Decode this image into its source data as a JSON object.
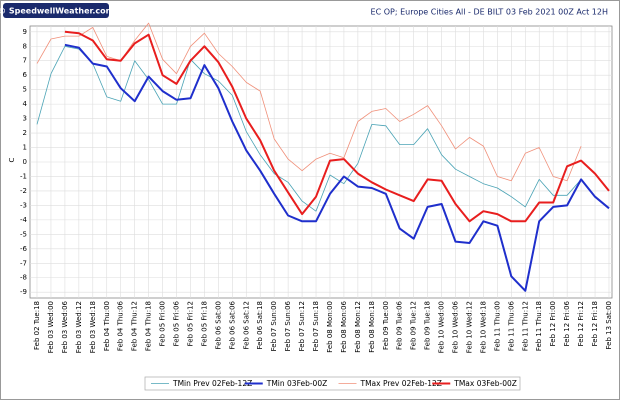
{
  "chart_data": {
    "type": "line",
    "source": "© SpeedwellWeather.com",
    "title": "EC OP; Europe Cities All - DE BILT 03 Feb 2021 00Z Act 12H",
    "y_label": "C",
    "categories": [
      "Feb 02 Tue:18",
      "Feb 03 Wed:00",
      "Feb 03 Wed:06",
      "Feb 03 Wed:12",
      "Feb 03 Wed:18",
      "Feb 04 Thu:00",
      "Feb 04 Thu:06",
      "Feb 04 Thu:12",
      "Feb 04 Thu:18",
      "Feb 05 Fri:00",
      "Feb 05 Fri:06",
      "Feb 05 Fri:12",
      "Feb 05 Fri:18",
      "Feb 06 Sat:00",
      "Feb 06 Sat:06",
      "Feb 06 Sat:12",
      "Feb 06 Sat:18",
      "Feb 07 Sun:00",
      "Feb 07 Sun:06",
      "Feb 07 Sun:12",
      "Feb 07 Sun:18",
      "Feb 08 Mon:00",
      "Feb 08 Mon:06",
      "Feb 08 Mon:12",
      "Feb 08 Mon:18",
      "Feb 09 Tue:00",
      "Feb 09 Tue:06",
      "Feb 09 Tue:12",
      "Feb 09 Tue:18",
      "Feb 10 Wed:00",
      "Feb 10 Wed:06",
      "Feb 10 Wed:12",
      "Feb 10 Wed:18",
      "Feb 11 Thu:00",
      "Feb 11 Thu:06",
      "Feb 11 Thu:12",
      "Feb 11 Thu:18",
      "Feb 12 Fri:00",
      "Feb 12 Fri:06",
      "Feb 12 Fri:12",
      "Feb 12 Fri:18",
      "Feb 13 Sat:00"
    ],
    "series": [
      {
        "name": "TMin Prev 02Feb-12Z",
        "color": "#4aa3b5",
        "width": 0.8,
        "values": [
          2.6,
          6.1,
          8.0,
          7.8,
          6.8,
          4.5,
          4.2,
          7.0,
          5.7,
          4.0,
          4.0,
          7.1,
          6.1,
          5.6,
          4.6,
          2.1,
          0.5,
          -0.8,
          -1.4,
          -2.7,
          -3.4,
          -0.9,
          -1.5,
          -0.1,
          2.6,
          2.5,
          1.2,
          1.2,
          2.3,
          0.5,
          -0.5,
          -1.0,
          -1.5,
          -1.8,
          -2.4,
          -3.1,
          -1.2,
          -2.3,
          -2.3,
          -1.2,
          null,
          null
        ]
      },
      {
        "name": "TMin 03Feb-00Z",
        "color": "#1f2fcc",
        "width": 2,
        "values": [
          null,
          null,
          8.1,
          7.9,
          6.8,
          6.6,
          5.1,
          4.2,
          5.9,
          4.9,
          4.3,
          4.4,
          6.7,
          5.1,
          2.8,
          0.8,
          -0.6,
          -2.2,
          -3.7,
          -4.1,
          -4.1,
          -2.2,
          -1.0,
          -1.7,
          -1.8,
          -2.2,
          -4.6,
          -5.3,
          -3.1,
          -2.9,
          -5.5,
          -5.6,
          -4.1,
          -4.4,
          -7.9,
          -8.9,
          -4.1,
          -3.1,
          -3.0,
          -1.2,
          -2.4,
          -3.2
        ]
      },
      {
        "name": "TMax Prev 02Feb-12Z",
        "color": "#f0907a",
        "width": 0.8,
        "values": [
          6.8,
          8.5,
          8.7,
          8.7,
          9.3,
          7.3,
          7.0,
          8.4,
          9.6,
          7.1,
          6.1,
          8.0,
          8.9,
          7.5,
          6.6,
          5.5,
          4.9,
          1.6,
          0.2,
          -0.6,
          0.2,
          0.6,
          0.3,
          2.8,
          3.5,
          3.7,
          2.8,
          3.3,
          3.9,
          2.5,
          0.9,
          1.7,
          1.1,
          -1.0,
          -1.3,
          0.6,
          1.0,
          -1.0,
          -1.3,
          1.1,
          null,
          null
        ]
      },
      {
        "name": "TMax 03Feb-00Z",
        "color": "#e81e1e",
        "width": 2,
        "values": [
          null,
          null,
          9.0,
          8.9,
          8.4,
          7.1,
          7.0,
          8.2,
          8.8,
          6.0,
          5.4,
          7.0,
          8.0,
          6.9,
          5.2,
          3.0,
          1.5,
          -0.6,
          -2.1,
          -3.6,
          -2.4,
          0.1,
          0.2,
          -0.8,
          -1.4,
          -1.9,
          -2.3,
          -2.7,
          -1.2,
          -1.3,
          -2.9,
          -4.1,
          -3.4,
          -3.6,
          -4.1,
          -4.1,
          -2.8,
          -2.8,
          -0.3,
          0.1,
          -0.8,
          -2.0
        ]
      }
    ],
    "ylim": [
      -9.4,
      9.4
    ],
    "yticks": [
      9,
      8,
      7,
      6,
      5,
      4,
      3,
      2,
      1,
      0,
      -1,
      -2,
      -3,
      -4,
      -5,
      -6,
      -7,
      -8,
      -9
    ],
    "grid": true,
    "legend": "bottom"
  }
}
